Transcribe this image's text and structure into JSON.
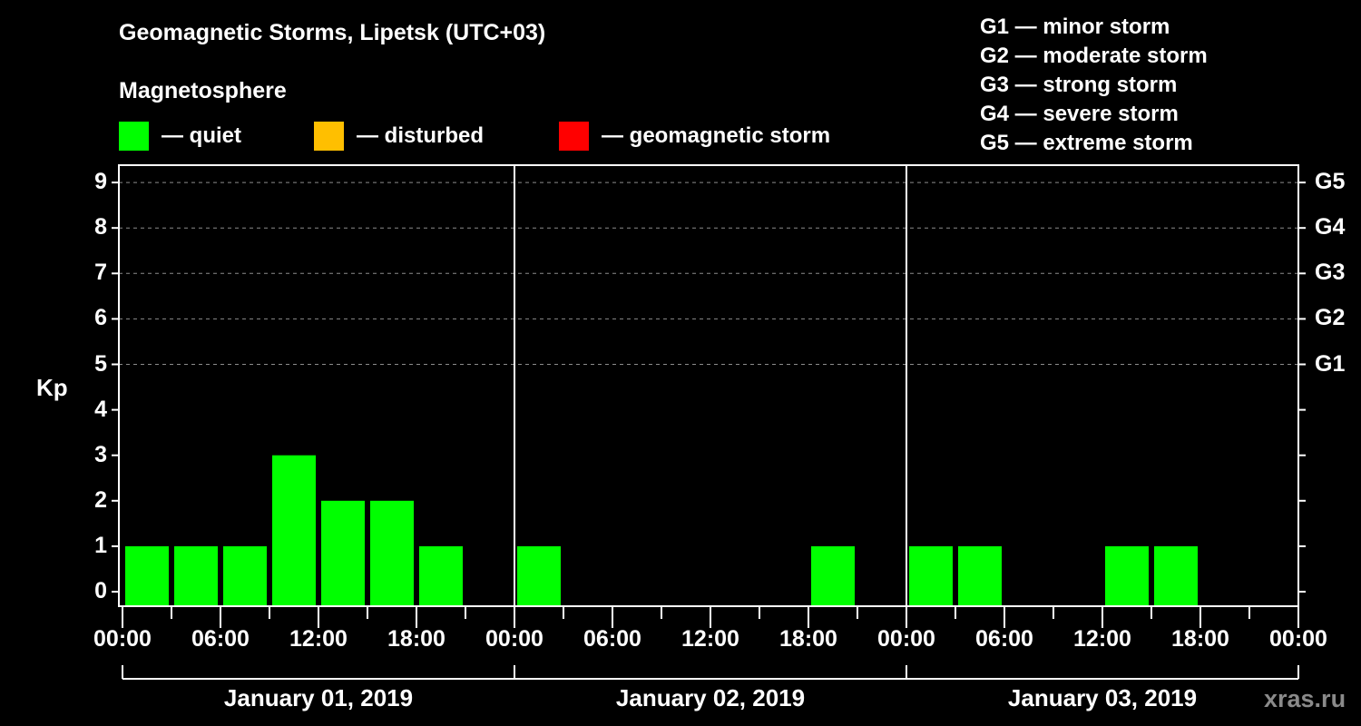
{
  "header": {
    "title": "Geomagnetic Storms, Lipetsk (UTC+03)",
    "subtitle": "Magnetosphere"
  },
  "legend": {
    "items": [
      {
        "label": "— quiet",
        "color": "#00ff00"
      },
      {
        "label": "— disturbed",
        "color": "#ffbf00"
      },
      {
        "label": "— geomagnetic storm",
        "color": "#ff0000"
      }
    ]
  },
  "g_legend": [
    "G1 — minor storm",
    "G2 — moderate storm",
    "G3 — strong storm",
    "G4 — severe storm",
    "G5 — extreme storm"
  ],
  "axis": {
    "ylabel": "Kp",
    "y_ticks": [
      "0",
      "1",
      "2",
      "3",
      "4",
      "5",
      "6",
      "7",
      "8",
      "9"
    ],
    "g_ticks": [
      "G1",
      "G2",
      "G3",
      "G4",
      "G5"
    ],
    "x_ticks": [
      "00:00",
      "06:00",
      "12:00",
      "18:00",
      "00:00",
      "06:00",
      "12:00",
      "18:00",
      "00:00",
      "06:00",
      "12:00",
      "18:00",
      "00:00"
    ],
    "days": [
      "January 01, 2019",
      "January 02, 2019",
      "January 03, 2019"
    ]
  },
  "watermark": "xras.ru",
  "chart_data": {
    "type": "bar",
    "title": "Geomagnetic Storms, Lipetsk (UTC+03)",
    "subtitle": "Magnetosphere",
    "xlabel": "",
    "ylabel": "Kp",
    "ylim": [
      0,
      9
    ],
    "grid": "dashed horizontal lines at Kp 5-9",
    "legend_position": "top",
    "categories": [
      "2019-01-01 00:00",
      "2019-01-01 03:00",
      "2019-01-01 06:00",
      "2019-01-01 09:00",
      "2019-01-01 12:00",
      "2019-01-01 15:00",
      "2019-01-01 18:00",
      "2019-01-01 21:00",
      "2019-01-02 00:00",
      "2019-01-02 03:00",
      "2019-01-02 06:00",
      "2019-01-02 09:00",
      "2019-01-02 12:00",
      "2019-01-02 15:00",
      "2019-01-02 18:00",
      "2019-01-02 21:00",
      "2019-01-03 00:00",
      "2019-01-03 03:00",
      "2019-01-03 06:00",
      "2019-01-03 09:00",
      "2019-01-03 12:00",
      "2019-01-03 15:00",
      "2019-01-03 18:00",
      "2019-01-03 21:00"
    ],
    "values": [
      1,
      1,
      1,
      3,
      2,
      2,
      1,
      0,
      1,
      0,
      0,
      0,
      0,
      0,
      1,
      0,
      1,
      1,
      0,
      0,
      1,
      1,
      0,
      0
    ],
    "bar_status": "quiet",
    "status_colors": {
      "quiet": "#00ff00",
      "disturbed": "#ffbf00",
      "geomagnetic storm": "#ff0000"
    },
    "storm_levels": {
      "G1": 5,
      "G2": 6,
      "G3": 7,
      "G4": 8,
      "G5": 9
    }
  }
}
